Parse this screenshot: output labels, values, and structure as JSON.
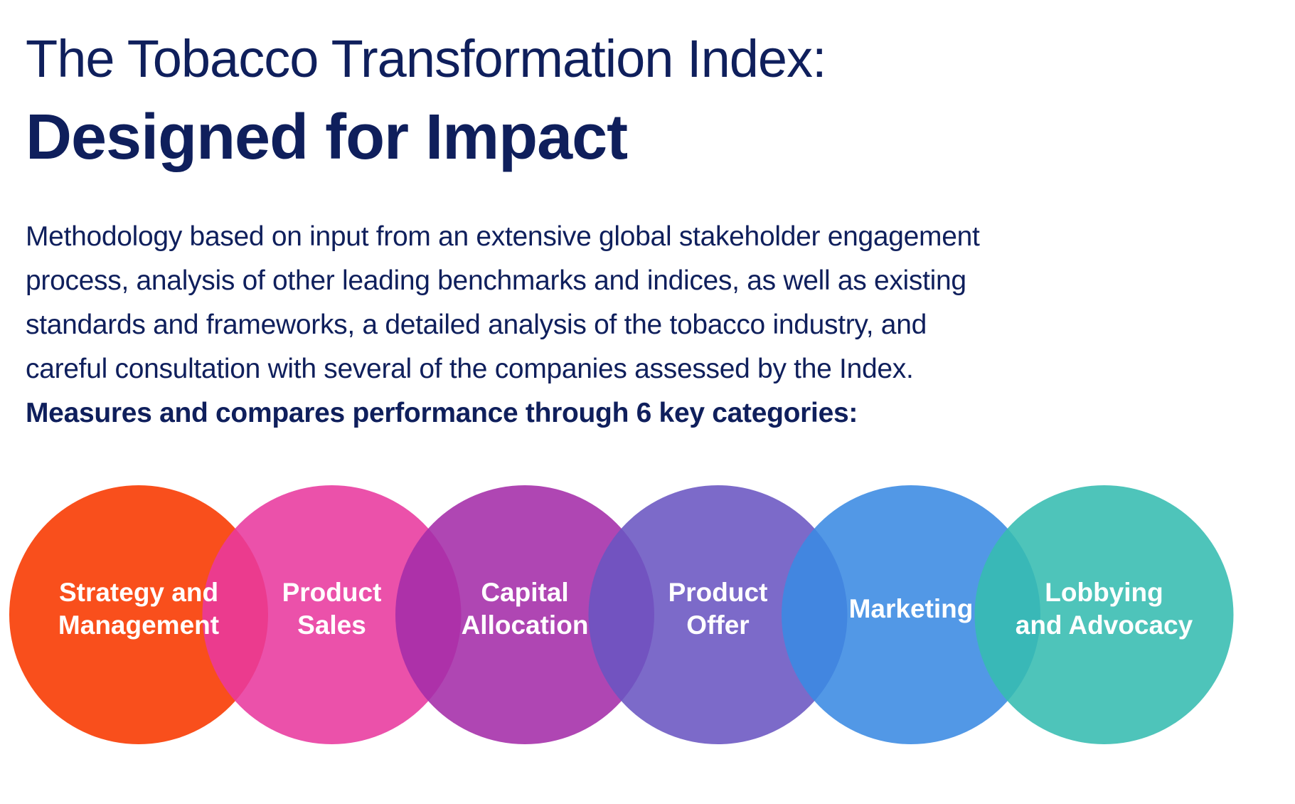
{
  "header": {
    "title_line1": "The Tobacco Transformation Index:",
    "title_line2": "Designed for Impact"
  },
  "body": {
    "paragraph_lines": [
      "Methodology based on input from an extensive global stakeholder engagement",
      "process, analysis of other leading benchmarks and indices, as well as existing",
      "standards and frameworks, a detailed analysis of the tobacco industry, and",
      "careful consultation with several of the companies assessed by the Index."
    ],
    "emphasis": "Measures and compares performance through 6 key categories:"
  },
  "categories": [
    {
      "lines": [
        "Strategy and",
        "Management"
      ],
      "color": "#f94f1c"
    },
    {
      "lines": [
        "Product",
        "Sales"
      ],
      "color": "#e8399e"
    },
    {
      "lines": [
        "Capital",
        "Allocation"
      ],
      "color": "#a42ca8"
    },
    {
      "lines": [
        "Product",
        "Offer"
      ],
      "color": "#6a55c2"
    },
    {
      "lines": [
        "Marketing"
      ],
      "color": "#3a8ae2"
    },
    {
      "lines": [
        "Lobbying",
        "and Advocacy"
      ],
      "color": "#35bcb1"
    }
  ]
}
